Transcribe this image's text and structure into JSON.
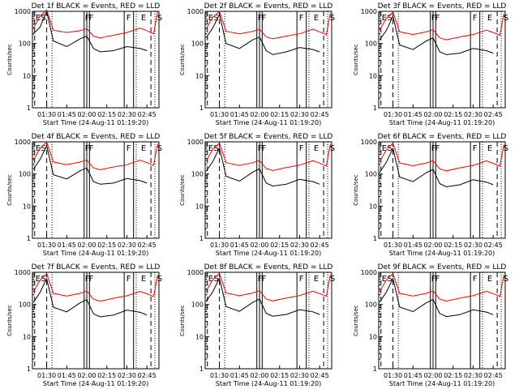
{
  "x_tick_labels": [
    "01:30",
    "01:45",
    "02:00",
    "02:15",
    "02:30",
    "02:45"
  ],
  "y_tick_labels": [
    "1",
    "10",
    "100",
    "1000"
  ],
  "xlabel": "Start Time (24-Aug-11 01:19:20)",
  "ylabel": "Counts/sec",
  "colors": {
    "events": "#000000",
    "lld": "#ff0000",
    "axes": "#000000",
    "background": "#ffffff"
  },
  "chart_data": [
    {
      "type": "line",
      "title": "Det 1f BLACK = Events, RED = LLD",
      "x_range": [
        "01:19:20",
        "02:54"
      ],
      "ylim": [
        1,
        1000
      ],
      "yscale": "log",
      "series": [
        {
          "name": "Events",
          "x": [
            "01:20",
            "01:25",
            "01:30",
            "01:35",
            "01:45",
            "01:55",
            "02:00",
            "02:05",
            "02:10",
            "02:20",
            "02:30",
            "02:40",
            "02:45"
          ],
          "values": [
            200,
            320,
            1000,
            120,
            80,
            140,
            170,
            70,
            55,
            60,
            80,
            70,
            60
          ]
        },
        {
          "name": "LLD",
          "x": [
            "01:20",
            "01:25",
            "01:30",
            "01:35",
            "01:45",
            "01:55",
            "02:00",
            "02:05",
            "02:10",
            "02:20",
            "02:30",
            "02:40",
            "02:45",
            "02:50",
            "02:53"
          ],
          "values": [
            300,
            700,
            1100,
            260,
            220,
            250,
            290,
            170,
            150,
            180,
            220,
            300,
            250,
            200,
            1000
          ]
        }
      ],
      "annotations": [
        "E",
        "S",
        "F",
        "F",
        "F",
        "E",
        "S"
      ]
    },
    {
      "type": "line",
      "title": "Det 2f BLACK = Events, RED = LLD",
      "x_range": [
        "01:19:20",
        "02:54"
      ],
      "ylim": [
        1,
        1000
      ],
      "yscale": "log",
      "series": [
        {
          "name": "Events",
          "x": [
            "01:20",
            "01:25",
            "01:30",
            "01:35",
            "01:45",
            "01:55",
            "02:00",
            "02:05",
            "02:10",
            "02:20",
            "02:30",
            "02:40",
            "02:45"
          ],
          "values": [
            150,
            300,
            800,
            100,
            70,
            130,
            160,
            60,
            45,
            55,
            75,
            65,
            55
          ]
        },
        {
          "name": "LLD",
          "x": [
            "01:20",
            "01:25",
            "01:30",
            "01:35",
            "01:45",
            "01:55",
            "02:00",
            "02:05",
            "02:10",
            "02:20",
            "02:30",
            "02:40",
            "02:45",
            "02:50",
            "02:53"
          ],
          "values": [
            280,
            650,
            1000,
            240,
            200,
            240,
            280,
            160,
            140,
            170,
            200,
            280,
            230,
            190,
            900
          ]
        }
      ],
      "annotations": [
        "E",
        "S",
        "F",
        "F",
        "F",
        "E",
        "S"
      ]
    },
    {
      "type": "line",
      "title": "Det 3f BLACK = Events, RED = LLD",
      "x_range": [
        "01:19:20",
        "02:54"
      ],
      "ylim": [
        1,
        1000
      ],
      "yscale": "log",
      "series": [
        {
          "name": "Events",
          "x": [
            "01:20",
            "01:25",
            "01:30",
            "01:35",
            "01:45",
            "01:55",
            "02:00",
            "02:05",
            "02:10",
            "02:20",
            "02:30",
            "02:40",
            "02:45"
          ],
          "values": [
            130,
            250,
            700,
            90,
            65,
            120,
            150,
            55,
            45,
            50,
            70,
            60,
            50
          ]
        },
        {
          "name": "LLD",
          "x": [
            "01:20",
            "01:25",
            "01:30",
            "01:35",
            "01:45",
            "01:55",
            "02:00",
            "02:05",
            "02:10",
            "02:20",
            "02:30",
            "02:40",
            "02:45",
            "02:50",
            "02:53"
          ],
          "values": [
            260,
            600,
            950,
            230,
            190,
            230,
            270,
            150,
            130,
            160,
            190,
            260,
            220,
            180,
            850
          ]
        }
      ],
      "annotations": [
        "E",
        "S",
        "F",
        "F",
        "F",
        "E",
        "S"
      ]
    },
    {
      "type": "line",
      "title": "Det 4f BLACK = Events, RED = LLD",
      "x_range": [
        "01:19:20",
        "02:54"
      ],
      "ylim": [
        1,
        1000
      ],
      "yscale": "log",
      "series": [
        {
          "name": "Events",
          "x": [
            "01:20",
            "01:25",
            "01:30",
            "01:35",
            "01:45",
            "01:55",
            "02:00",
            "02:05",
            "02:10",
            "02:20",
            "02:30",
            "02:40",
            "02:45"
          ],
          "values": [
            140,
            280,
            750,
            95,
            70,
            125,
            155,
            58,
            48,
            52,
            72,
            62,
            52
          ]
        },
        {
          "name": "LLD",
          "x": [
            "01:20",
            "01:25",
            "01:30",
            "01:35",
            "01:45",
            "01:55",
            "02:00",
            "02:05",
            "02:10",
            "02:20",
            "02:30",
            "02:40",
            "02:45",
            "02:50",
            "02:53"
          ],
          "values": [
            270,
            620,
            980,
            235,
            195,
            235,
            275,
            155,
            135,
            165,
            195,
            270,
            225,
            185,
            880
          ]
        }
      ],
      "annotations": [
        "E",
        "S",
        "F",
        "F",
        "F",
        "E",
        "S"
      ]
    },
    {
      "type": "line",
      "title": "Det 5f BLACK = Events, RED = LLD",
      "x_range": [
        "01:19:20",
        "02:54"
      ],
      "ylim": [
        1,
        1000
      ],
      "yscale": "log",
      "series": [
        {
          "name": "Events",
          "x": [
            "01:20",
            "01:25",
            "01:30",
            "01:35",
            "01:45",
            "01:55",
            "02:00",
            "02:05",
            "02:10",
            "02:20",
            "02:30",
            "02:40",
            "02:45"
          ],
          "values": [
            120,
            240,
            650,
            85,
            60,
            115,
            145,
            52,
            42,
            48,
            68,
            58,
            48
          ]
        },
        {
          "name": "LLD",
          "x": [
            "01:20",
            "01:25",
            "01:30",
            "01:35",
            "01:45",
            "01:55",
            "02:00",
            "02:05",
            "02:10",
            "02:20",
            "02:30",
            "02:40",
            "02:45",
            "02:50",
            "02:53"
          ],
          "values": [
            250,
            580,
            920,
            225,
            185,
            225,
            265,
            148,
            128,
            158,
            188,
            258,
            218,
            178,
            840
          ]
        }
      ],
      "annotations": [
        "E",
        "S",
        "F",
        "F",
        "F",
        "E",
        "S"
      ]
    },
    {
      "type": "line",
      "title": "Det 6f BLACK = Events, RED = LLD",
      "x_range": [
        "01:19:20",
        "02:54"
      ],
      "ylim": [
        1,
        1000
      ],
      "yscale": "log",
      "series": [
        {
          "name": "Events",
          "x": [
            "01:20",
            "01:25",
            "01:30",
            "01:35",
            "01:45",
            "01:55",
            "02:00",
            "02:05",
            "02:10",
            "02:20",
            "02:30",
            "02:40",
            "02:45"
          ],
          "values": [
            110,
            230,
            620,
            80,
            58,
            110,
            140,
            50,
            40,
            46,
            66,
            56,
            46
          ]
        },
        {
          "name": "LLD",
          "x": [
            "01:20",
            "01:25",
            "01:30",
            "01:35",
            "01:45",
            "01:55",
            "02:00",
            "02:05",
            "02:10",
            "02:20",
            "02:30",
            "02:40",
            "02:45",
            "02:50",
            "02:53"
          ],
          "values": [
            240,
            560,
            900,
            220,
            180,
            220,
            260,
            145,
            125,
            155,
            185,
            255,
            215,
            175,
            820
          ]
        }
      ],
      "annotations": [
        "E",
        "S",
        "F",
        "F",
        "F",
        "E",
        "S"
      ]
    },
    {
      "type": "line",
      "title": "Det 7f BLACK = Events, RED = LLD",
      "x_range": [
        "01:19:20",
        "02:54"
      ],
      "ylim": [
        1,
        1000
      ],
      "yscale": "log",
      "series": [
        {
          "name": "Events",
          "x": [
            "01:20",
            "01:25",
            "01:30",
            "01:35",
            "01:45",
            "01:55",
            "02:00",
            "02:05",
            "02:10",
            "02:20",
            "02:30",
            "02:40",
            "02:45"
          ],
          "values": [
            115,
            235,
            630,
            82,
            59,
            112,
            142,
            51,
            41,
            47,
            67,
            57,
            47
          ]
        },
        {
          "name": "LLD",
          "x": [
            "01:20",
            "01:25",
            "01:30",
            "01:35",
            "01:45",
            "01:55",
            "02:00",
            "02:05",
            "02:10",
            "02:20",
            "02:30",
            "02:40",
            "02:45",
            "02:50",
            "02:53"
          ],
          "values": [
            245,
            570,
            910,
            222,
            182,
            222,
            262,
            146,
            126,
            156,
            186,
            256,
            216,
            176,
            830
          ]
        }
      ],
      "annotations": [
        "E",
        "S",
        "F",
        "F",
        "F",
        "E",
        "S"
      ]
    },
    {
      "type": "line",
      "title": "Det 8f BLACK = Events, RED = LLD",
      "x_range": [
        "01:19:20",
        "02:54"
      ],
      "ylim": [
        1,
        1000
      ],
      "yscale": "log",
      "series": [
        {
          "name": "Events",
          "x": [
            "01:20",
            "01:25",
            "01:30",
            "01:35",
            "01:45",
            "01:55",
            "02:00",
            "02:05",
            "02:10",
            "02:20",
            "02:30",
            "02:40",
            "02:45"
          ],
          "values": [
            125,
            245,
            660,
            86,
            61,
            116,
            146,
            53,
            43,
            49,
            69,
            59,
            49
          ]
        },
        {
          "name": "LLD",
          "x": [
            "01:20",
            "01:25",
            "01:30",
            "01:35",
            "01:45",
            "01:55",
            "02:00",
            "02:05",
            "02:10",
            "02:20",
            "02:30",
            "02:40",
            "02:45",
            "02:50",
            "02:53"
          ],
          "values": [
            255,
            590,
            930,
            227,
            187,
            227,
            267,
            149,
            129,
            159,
            189,
            259,
            219,
            179,
            850
          ]
        }
      ],
      "annotations": [
        "E",
        "S",
        "F",
        "F",
        "F",
        "E",
        "S"
      ]
    },
    {
      "type": "line",
      "title": "Det 9f BLACK = Events, RED = LLD",
      "x_range": [
        "01:19:20",
        "02:54"
      ],
      "ylim": [
        1,
        1000
      ],
      "yscale": "log",
      "series": [
        {
          "name": "Events",
          "x": [
            "01:20",
            "01:25",
            "01:30",
            "01:35",
            "01:45",
            "01:55",
            "02:00",
            "02:05",
            "02:10",
            "02:20",
            "02:30",
            "02:40",
            "02:45"
          ],
          "values": [
            118,
            238,
            640,
            83,
            60,
            113,
            143,
            52,
            42,
            48,
            68,
            58,
            48
          ]
        },
        {
          "name": "LLD",
          "x": [
            "01:20",
            "01:25",
            "01:30",
            "01:35",
            "01:45",
            "01:55",
            "02:00",
            "02:05",
            "02:10",
            "02:20",
            "02:30",
            "02:40",
            "02:45",
            "02:50",
            "02:53"
          ],
          "values": [
            248,
            575,
            915,
            223,
            183,
            223,
            263,
            147,
            127,
            157,
            187,
            257,
            217,
            177,
            835
          ]
        }
      ],
      "annotations": [
        "E",
        "S",
        "F",
        "F",
        "F",
        "E",
        "S"
      ]
    }
  ]
}
